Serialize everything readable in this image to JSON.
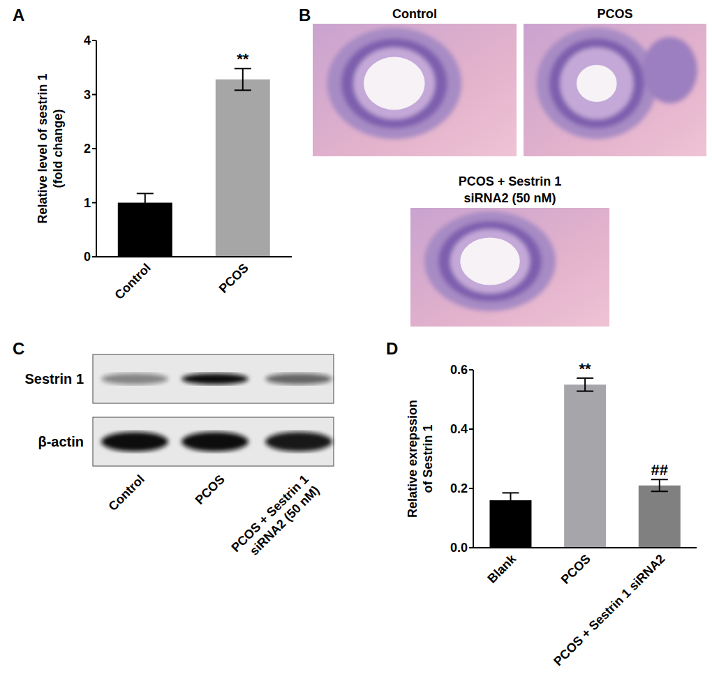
{
  "chart_data": [
    {
      "type": "bar",
      "label": "A",
      "y_label": [
        "Relative level of sestrin 1",
        "(fold change)"
      ],
      "categories": [
        "Control",
        "PCOS"
      ],
      "values": [
        1.0,
        3.28
      ],
      "errors": [
        0.17,
        0.2
      ],
      "annotations": [
        null,
        "**"
      ],
      "colors": [
        "#000000",
        "#a6a6a6"
      ],
      "ylim": [
        0,
        4
      ],
      "yticks": [
        0,
        1,
        2,
        3,
        4
      ]
    },
    {
      "type": "image",
      "label": "B",
      "panels": [
        {
          "title": [
            "Control"
          ]
        },
        {
          "title": [
            "PCOS"
          ]
        },
        {
          "title": [
            "PCOS + Sestrin 1",
            "siRNA2 (50 nM)"
          ]
        }
      ]
    },
    {
      "type": "blot",
      "label": "C",
      "rows": [
        "Sestrin 1",
        "β-actin"
      ],
      "lanes": [
        [
          "Control"
        ],
        [
          "PCOS"
        ],
        [
          "PCOS + Sestrin 1",
          "siRNA2 (50 nM)"
        ]
      ]
    },
    {
      "type": "bar",
      "label": "D",
      "y_label": [
        "Relative exrepssion",
        "of Sestrin 1"
      ],
      "categories": [
        "Blank",
        "PCOS",
        "PCOS + Sestrin 1 siRNA2"
      ],
      "values": [
        0.16,
        0.55,
        0.21
      ],
      "errors": [
        0.025,
        0.022,
        0.02
      ],
      "annotations": [
        null,
        "**",
        "##"
      ],
      "colors": [
        "#000000",
        "#a6a6aa",
        "#808080"
      ],
      "ylim": [
        0,
        0.6
      ],
      "yticks": [
        {
          "value": 0,
          "label": "0.0"
        },
        0.2,
        0.4,
        0.6
      ]
    }
  ]
}
